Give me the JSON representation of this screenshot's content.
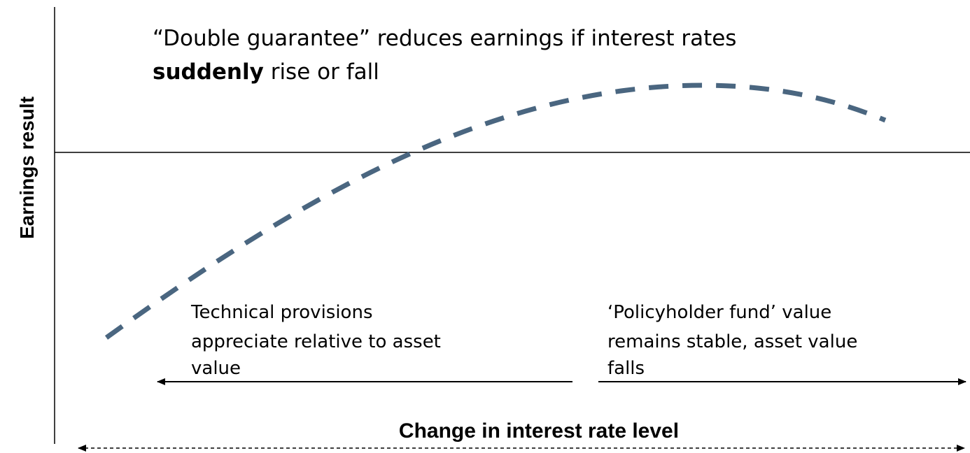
{
  "headline": {
    "line1": "“Double guarantee” reduces earnings if interest rates",
    "emphasis": "suddenly",
    "rest": " rise or fall"
  },
  "y_axis_label": "Earnings result",
  "x_axis_label": "Change in interest rate level",
  "annotations": [
    {
      "lines": [
        "Technical provisions",
        "appreciate relative to asset",
        "value"
      ]
    },
    {
      "lines": [
        "‘Policyholder fund’ value",
        "remains stable, asset value",
        "falls"
      ]
    }
  ]
}
